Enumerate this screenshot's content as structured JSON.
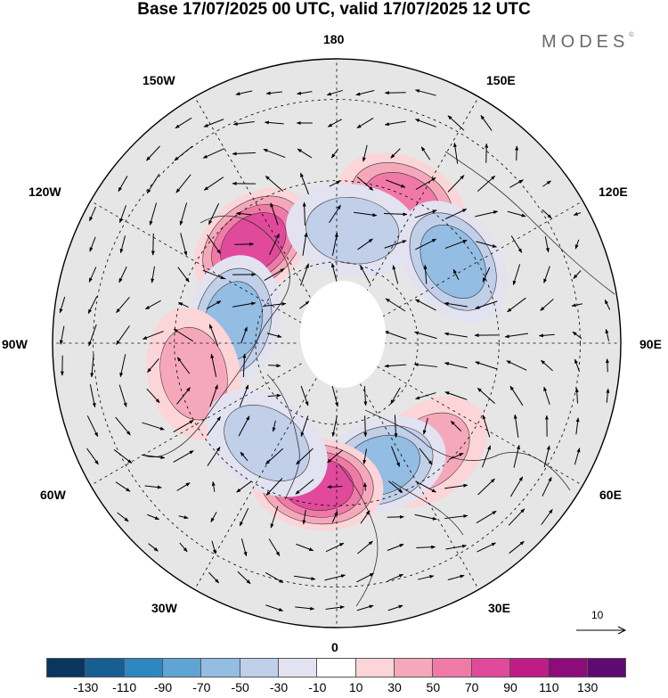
{
  "title": "Base 17/07/2025 00 UTC, valid 17/07/2025 12 UTC",
  "logo": "MODES",
  "logo_mark": "©",
  "longitude_labels": {
    "lon_180": "180",
    "lon_150e": "150E",
    "lon_120e": "120E",
    "lon_90e": "90E",
    "lon_60e": "60E",
    "lon_30e": "30E",
    "lon_0": "0",
    "lon_30w": "30W",
    "lon_60w": "60W",
    "lon_90w": "90W",
    "lon_120w": "120W",
    "lon_150w": "150W"
  },
  "wind_scale_label": "10",
  "colorbar": {
    "colors": [
      "#08365f",
      "#155f93",
      "#2f87c0",
      "#5ea5d3",
      "#93bde2",
      "#c1cfe9",
      "#e2e2f0",
      "#ffffff",
      "#fbd5d8",
      "#f6a8bb",
      "#f07aa7",
      "#e14a9a",
      "#c01c88",
      "#8e0c7a",
      "#5e0a70"
    ],
    "tick_labels": [
      "-130",
      "-110",
      "-90",
      "-70",
      "-50",
      "-30",
      "-10",
      "10",
      "30",
      "50",
      "70",
      "90",
      "110",
      "130"
    ]
  },
  "anomaly_centers": [
    {
      "name": "pink-north-pacific",
      "lon": 155,
      "lat": 52,
      "value": 60
    },
    {
      "name": "pink-alaska",
      "lon": -140,
      "lat": 58,
      "value": 80
    },
    {
      "name": "blue-bering",
      "lon": 172,
      "lat": 62,
      "value": -55
    },
    {
      "name": "blue-east-siberia",
      "lon": 125,
      "lat": 55,
      "value": -60
    },
    {
      "name": "blue-canada",
      "lon": -102,
      "lat": 64,
      "value": -65
    },
    {
      "name": "pink-hudson",
      "lon": -78,
      "lat": 54,
      "value": 40
    },
    {
      "name": "pink-east-europe",
      "lon": 40,
      "lat": 55,
      "value": 45
    },
    {
      "name": "blue-scandinavia",
      "lon": 20,
      "lat": 58,
      "value": -70
    },
    {
      "name": "pink-north-atlantic",
      "lon": -8,
      "lat": 55,
      "value": 90
    },
    {
      "name": "blue-greenland-sea",
      "lon": -35,
      "lat": 60,
      "value": -50
    }
  ]
}
